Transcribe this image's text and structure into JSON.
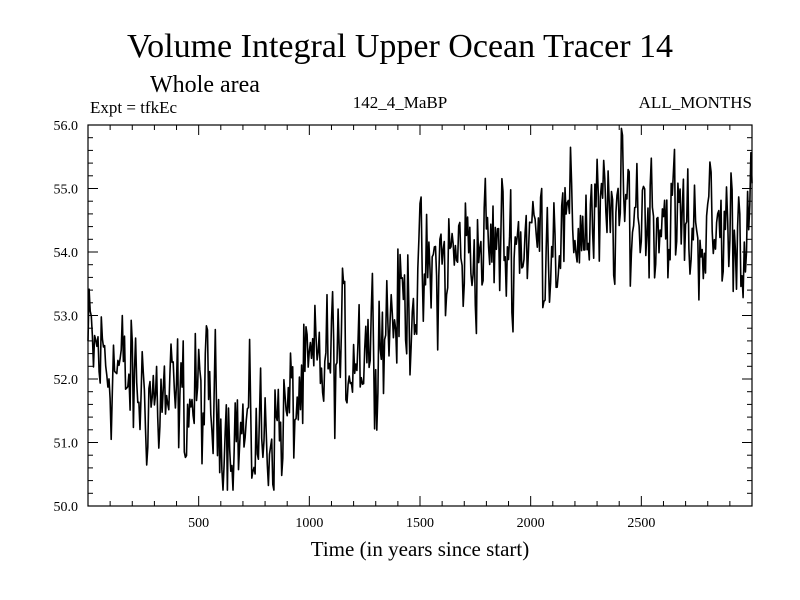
{
  "header": {
    "title": "Volume Integral Upper Ocean Tracer 14",
    "subtitle": "Whole area",
    "expt": "Expt = tfkEc",
    "experiment_name": "142_4_MaBP",
    "months": "ALL_MONTHS"
  },
  "chart_data": {
    "type": "line",
    "title": "Volume Integral Upper Ocean Tracer 14",
    "subtitle": "Whole area",
    "xlabel": "Time (in years since start)",
    "ylabel": "",
    "xlim": [
      0,
      3000
    ],
    "ylim": [
      50.0,
      56.0
    ],
    "xticks": [
      500,
      1000,
      1500,
      2000,
      2500
    ],
    "xtick_labels": [
      "500",
      "1000",
      "1500",
      "2000",
      "2500"
    ],
    "yticks": [
      50.0,
      51.0,
      52.0,
      53.0,
      54.0,
      55.0,
      56.0
    ],
    "ytick_labels": [
      "50.0",
      "51.0",
      "52.0",
      "53.0",
      "54.0",
      "55.0",
      "56.0"
    ],
    "grid": false,
    "line_color": "#000000",
    "series": [
      {
        "x": [
          0,
          50,
          100,
          150,
          200,
          250,
          300,
          350,
          400,
          450,
          500,
          550,
          600,
          650,
          700,
          750,
          800,
          850,
          900,
          950,
          1000,
          1050,
          1100,
          1150,
          1200,
          1250,
          1300,
          1350,
          1400,
          1450,
          1500,
          1550,
          1600,
          1650,
          1700,
          1750,
          1800,
          1850,
          1900,
          1950,
          2000,
          2050,
          2100,
          2150,
          2200,
          2250,
          2300,
          2350,
          2400,
          2450,
          2500,
          2550,
          2600,
          2650,
          2700,
          2750,
          2800,
          2850,
          2900,
          2950,
          3000
        ],
        "y": [
          52.5,
          52.4,
          52.2,
          52.1,
          51.9,
          51.8,
          51.7,
          51.6,
          51.6,
          51.6,
          51.7,
          51.6,
          51.4,
          51.2,
          51.1,
          51.1,
          51.1,
          51.2,
          51.4,
          51.7,
          52.0,
          52.2,
          52.3,
          52.4,
          52.5,
          52.6,
          52.7,
          52.9,
          53.1,
          53.3,
          53.5,
          53.6,
          53.8,
          53.9,
          54.0,
          54.0,
          54.1,
          54.1,
          54.1,
          54.2,
          54.3,
          54.2,
          54.3,
          54.3,
          54.4,
          54.4,
          54.5,
          54.5,
          54.6,
          54.7,
          54.7,
          54.7,
          54.6,
          54.5,
          54.4,
          54.4,
          54.3,
          54.3,
          54.4,
          54.4,
          54.4
        ]
      }
    ]
  }
}
